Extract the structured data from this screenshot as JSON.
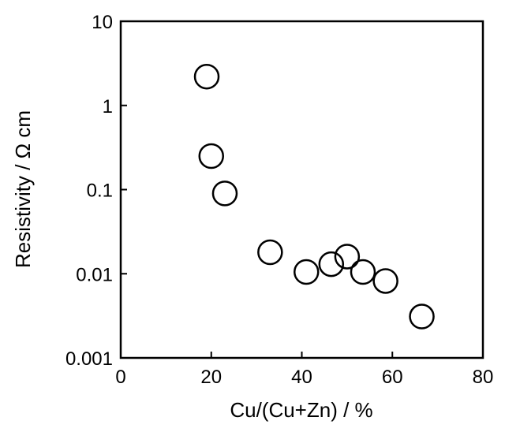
{
  "chart_data": {
    "type": "scatter",
    "xlabel": "Cu/(Cu+Zn) / %",
    "ylabel": "Resistivity / Ω cm",
    "xlim": [
      0,
      80
    ],
    "ylim": [
      0.001,
      10
    ],
    "yscale": "log",
    "grid": false,
    "legend": "none",
    "x_ticks": [
      {
        "value": 0,
        "label": "0"
      },
      {
        "value": 20,
        "label": "20"
      },
      {
        "value": 40,
        "label": "40"
      },
      {
        "value": 60,
        "label": "60"
      },
      {
        "value": 80,
        "label": "80"
      }
    ],
    "y_ticks": [
      {
        "value": 0.001,
        "label": "0.001"
      },
      {
        "value": 0.01,
        "label": "0.01"
      },
      {
        "value": 0.1,
        "label": "0.1"
      },
      {
        "value": 1,
        "label": "1"
      },
      {
        "value": 10,
        "label": "10"
      }
    ],
    "series": [
      {
        "marker": "open-circle",
        "color": "#000000",
        "points": [
          {
            "x": 19,
            "y": 2.2
          },
          {
            "x": 20,
            "y": 0.25
          },
          {
            "x": 23,
            "y": 0.09
          },
          {
            "x": 33,
            "y": 0.018
          },
          {
            "x": 41,
            "y": 0.0105
          },
          {
            "x": 46.5,
            "y": 0.013
          },
          {
            "x": 50,
            "y": 0.016
          },
          {
            "x": 53.5,
            "y": 0.0105
          },
          {
            "x": 58.5,
            "y": 0.0082
          },
          {
            "x": 66.5,
            "y": 0.0031
          }
        ]
      }
    ]
  }
}
